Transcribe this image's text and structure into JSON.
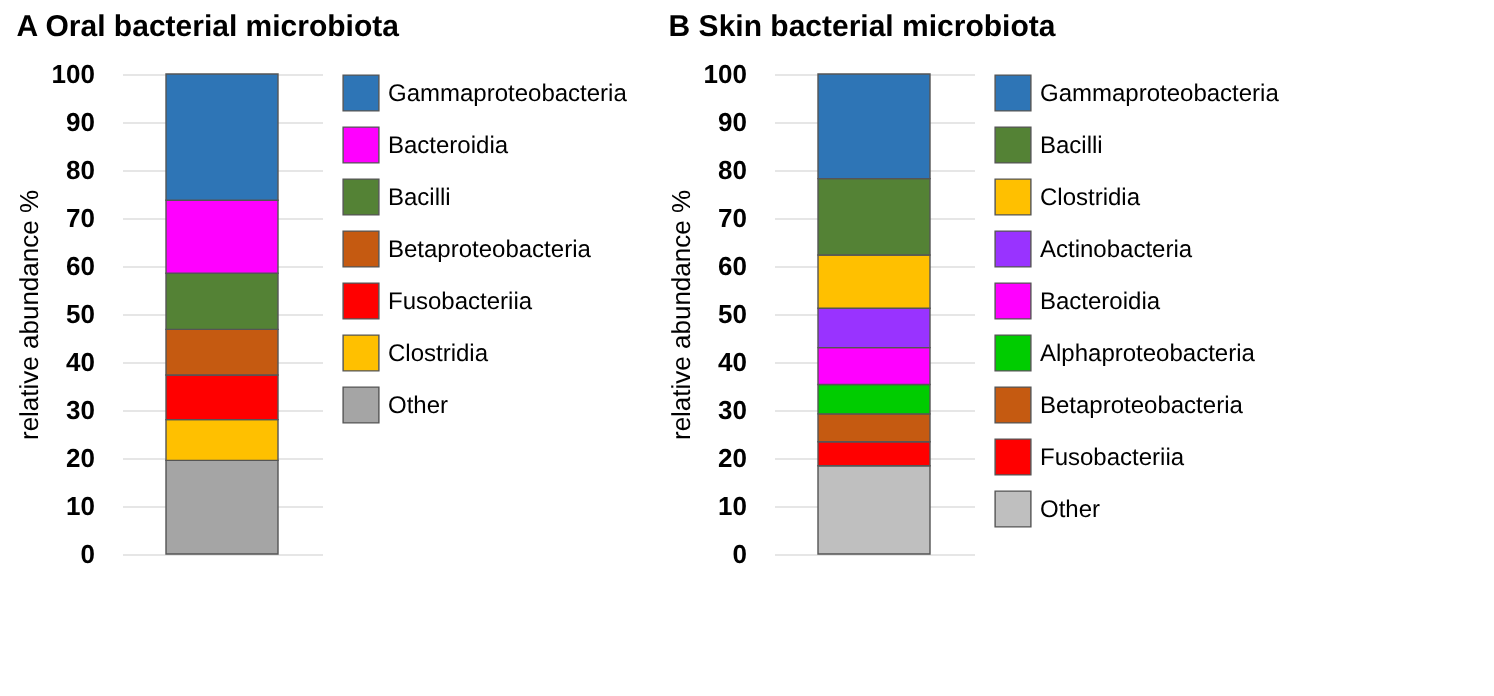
{
  "chart_data": [
    {
      "type": "bar",
      "title": "A  Oral bacterial microbiota",
      "ylabel": "relative abundance %",
      "categories": [
        null
      ],
      "stacked": true,
      "legend": "right",
      "grid": "y",
      "ylim": [
        0,
        100
      ],
      "yticks": [
        0,
        10,
        20,
        30,
        40,
        50,
        60,
        70,
        80,
        90,
        100
      ],
      "series": [
        {
          "name": "Other",
          "color": "#a5a5a5",
          "values": [
            19.5
          ]
        },
        {
          "name": "Clostridia",
          "color": "#ffc000",
          "values": [
            8.5
          ]
        },
        {
          "name": "Fusobacteriia",
          "color": "#ff0000",
          "values": [
            9.3
          ]
        },
        {
          "name": "Betaproteobacteria",
          "color": "#c55a11",
          "values": [
            9.5
          ]
        },
        {
          "name": "Bacilli",
          "color": "#548235",
          "values": [
            11.7
          ]
        },
        {
          "name": "Bacteroidia",
          "color": "#ff00ff",
          "values": [
            15.2
          ]
        },
        {
          "name": "Gammaproteobacteria",
          "color": "#2e75b6",
          "values": [
            26.3
          ]
        }
      ]
    },
    {
      "type": "bar",
      "title": "B  Skin bacterial microbiota",
      "ylabel": "relative abundance %",
      "categories": [
        null
      ],
      "stacked": true,
      "legend": "right",
      "grid": "y",
      "ylim": [
        0,
        100
      ],
      "yticks": [
        0,
        10,
        20,
        30,
        40,
        50,
        60,
        70,
        80,
        90,
        100
      ],
      "series": [
        {
          "name": "Other",
          "color": "#bfbfbf",
          "values": [
            18.4
          ]
        },
        {
          "name": "Fusobacteriia",
          "color": "#ff0000",
          "values": [
            5.0
          ]
        },
        {
          "name": "Betaproteobacteria",
          "color": "#c55a11",
          "values": [
            5.8
          ]
        },
        {
          "name": "Alphaproteobacteria",
          "color": "#00cc00",
          "values": [
            6.1
          ]
        },
        {
          "name": "Bacteroidia",
          "color": "#ff00ff",
          "values": [
            7.7
          ]
        },
        {
          "name": "Actinobacteria",
          "color": "#9933ff",
          "values": [
            8.2
          ]
        },
        {
          "name": "Clostridia",
          "color": "#ffc000",
          "values": [
            11.1
          ]
        },
        {
          "name": "Bacilli",
          "color": "#548235",
          "values": [
            15.9
          ]
        },
        {
          "name": "Gammaproteobacteria",
          "color": "#2e75b6",
          "values": [
            21.8
          ]
        }
      ]
    }
  ]
}
